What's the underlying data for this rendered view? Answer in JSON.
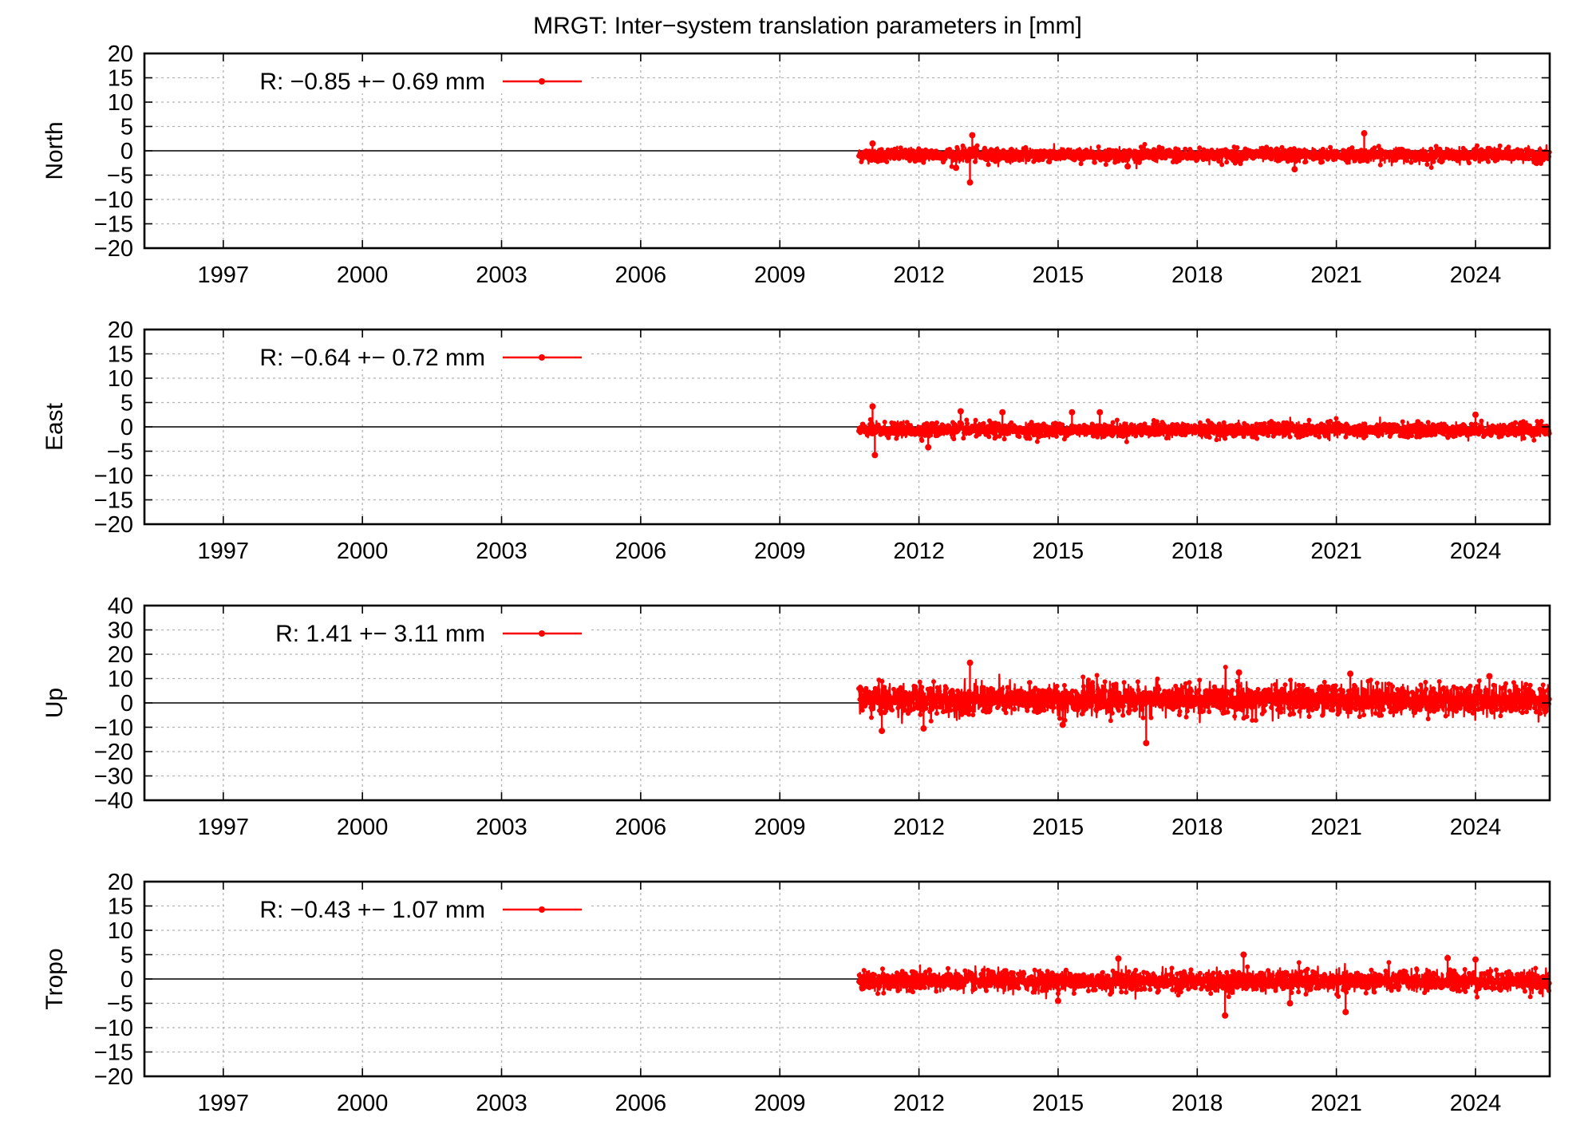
{
  "title": "MRGT: Inter−system translation parameters in [mm]",
  "colors": {
    "series": "#ff0000",
    "frame": "#000000",
    "grid": "#b4b4b4"
  },
  "chart_data": [
    {
      "type": "line",
      "ylabel": "North",
      "xlim": [
        1995.3,
        2025.6
      ],
      "ylim": [
        -20,
        20
      ],
      "yticks": [
        "20",
        "15",
        "10",
        "5",
        "0",
        "−5",
        "−10",
        "−15",
        "−20"
      ],
      "xticks": [
        "1997",
        "2000",
        "2003",
        "2006",
        "2009",
        "2012",
        "2015",
        "2018",
        "2021",
        "2024"
      ],
      "legend": "R:  −0.85 +− 0.69 mm",
      "legend_position": "top-left",
      "grid": true,
      "series": [
        {
          "data_start": 2010.7,
          "data_end": 2025.6,
          "mean": -0.85,
          "std": 0.69,
          "x": [
            2013.1,
            2013.15,
            2012.8,
            2021.6,
            2016.5,
            2020.1,
            2011.0
          ],
          "y": [
            -6.5,
            3.2,
            -3.5,
            3.6,
            -3.2,
            -3.8,
            1.5
          ]
        }
      ]
    },
    {
      "type": "line",
      "ylabel": "East",
      "xlim": [
        1995.3,
        2025.6
      ],
      "ylim": [
        -20,
        20
      ],
      "yticks": [
        "20",
        "15",
        "10",
        "5",
        "0",
        "−5",
        "−10",
        "−15",
        "−20"
      ],
      "xticks": [
        "1997",
        "2000",
        "2003",
        "2006",
        "2009",
        "2012",
        "2015",
        "2018",
        "2021",
        "2024"
      ],
      "legend": "R:  −0.64 +− 0.72 mm",
      "legend_position": "top-left",
      "grid": true,
      "series": [
        {
          "data_start": 2010.7,
          "data_end": 2025.6,
          "mean": -0.64,
          "std": 0.72,
          "x": [
            2011.0,
            2011.05,
            2012.9,
            2013.8,
            2015.3,
            2015.9,
            2012.2,
            2024.0
          ],
          "y": [
            4.2,
            -5.8,
            3.2,
            3.0,
            3.0,
            3.0,
            -4.2,
            2.5
          ]
        }
      ]
    },
    {
      "type": "line",
      "ylabel": "Up",
      "xlim": [
        1995.3,
        2025.6
      ],
      "ylim": [
        -40,
        40
      ],
      "yticks": [
        "40",
        "30",
        "20",
        "10",
        "0",
        "−10",
        "−20",
        "−30",
        "−40"
      ],
      "xticks": [
        "1997",
        "2000",
        "2003",
        "2006",
        "2009",
        "2012",
        "2015",
        "2018",
        "2021",
        "2024"
      ],
      "legend": "R:   1.41 +− 3.11 mm",
      "legend_position": "top-left",
      "grid": true,
      "series": [
        {
          "data_start": 2010.7,
          "data_end": 2025.6,
          "mean": 1.41,
          "std": 3.11,
          "x": [
            2013.1,
            2016.9,
            2011.2,
            2018.9,
            2021.3,
            2012.1,
            2015.1,
            2024.3
          ],
          "y": [
            16.5,
            -16.5,
            -11.5,
            12.5,
            12.0,
            -10.5,
            -9.0,
            11.0
          ]
        }
      ]
    },
    {
      "type": "line",
      "ylabel": "Tropo",
      "xlim": [
        1995.3,
        2025.6
      ],
      "ylim": [
        -20,
        20
      ],
      "yticks": [
        "20",
        "15",
        "10",
        "5",
        "0",
        "−5",
        "−10",
        "−15",
        "−20"
      ],
      "xticks": [
        "1997",
        "2000",
        "2003",
        "2006",
        "2009",
        "2012",
        "2015",
        "2018",
        "2021",
        "2024"
      ],
      "legend": "R:  −0.43 +− 1.07 mm",
      "legend_position": "top-left",
      "grid": true,
      "series": [
        {
          "data_start": 2010.7,
          "data_end": 2025.6,
          "mean": -0.43,
          "std": 1.07,
          "x": [
            2018.6,
            2019.0,
            2021.2,
            2016.3,
            2023.4,
            2024.0,
            2020.0,
            2015.0
          ],
          "y": [
            -7.5,
            5.0,
            -6.8,
            4.2,
            4.3,
            4.0,
            -5.0,
            -4.5
          ]
        }
      ]
    }
  ]
}
